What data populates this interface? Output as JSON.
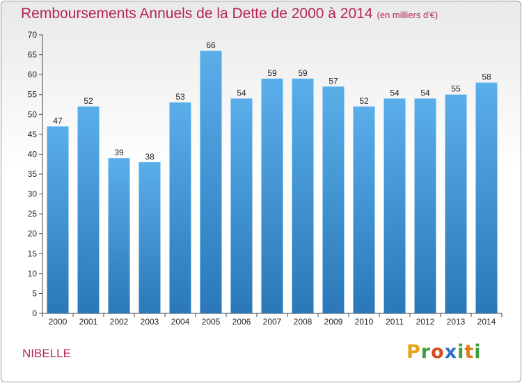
{
  "header": {
    "title": "Remboursements Annuels de la Dette de 2000 à 2014",
    "unit": "(en milliers d'€)"
  },
  "footer": {
    "commune": "NIBELLE",
    "logo": [
      "P",
      "r",
      "o",
      "x",
      "i",
      "t",
      "i"
    ],
    "logo_colors": [
      "#e8a21c",
      "#3a9e3a",
      "#d94a1e",
      "#2a6fc9",
      "#3a9e3a",
      "#e07a14",
      "#3a9e3a"
    ]
  },
  "chart_data": {
    "type": "bar",
    "title": "Remboursements Annuels de la Dette de 2000 à 2014",
    "subtitle": "(en milliers d'€)",
    "xlabel": "",
    "ylabel": "",
    "categories": [
      "2000",
      "2001",
      "2002",
      "2003",
      "2004",
      "2005",
      "2006",
      "2007",
      "2008",
      "2009",
      "2010",
      "2011",
      "2012",
      "2013",
      "2014"
    ],
    "values": [
      47,
      52,
      39,
      38,
      53,
      66,
      54,
      59,
      59,
      57,
      52,
      54,
      54,
      55,
      58
    ],
    "ylim": [
      0,
      70
    ],
    "yticks": [
      0,
      5,
      10,
      15,
      20,
      25,
      30,
      35,
      40,
      45,
      50,
      55,
      60,
      65,
      70
    ],
    "grid": false,
    "bar_color_top": "#5aaeea",
    "bar_color_bottom": "#2a78b8"
  }
}
